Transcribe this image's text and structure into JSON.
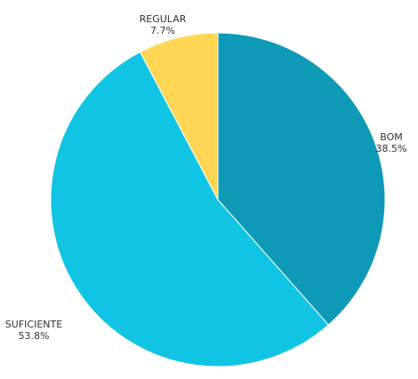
{
  "chart_data": {
    "type": "pie",
    "slices": [
      {
        "label": "BOM",
        "percent_label": "38.5%",
        "value": 38.5,
        "color": "#0E9AB6"
      },
      {
        "label": "SUFICIENTE",
        "percent_label": "53.8%",
        "value": 53.8,
        "color": "#12C4E4"
      },
      {
        "label": "REGULAR",
        "percent_label": "7.7%",
        "value": 7.7,
        "color": "#FFD654"
      }
    ],
    "start_angle_deg": 0,
    "direction": "clockwise",
    "legend": "none",
    "labels": "outside"
  }
}
